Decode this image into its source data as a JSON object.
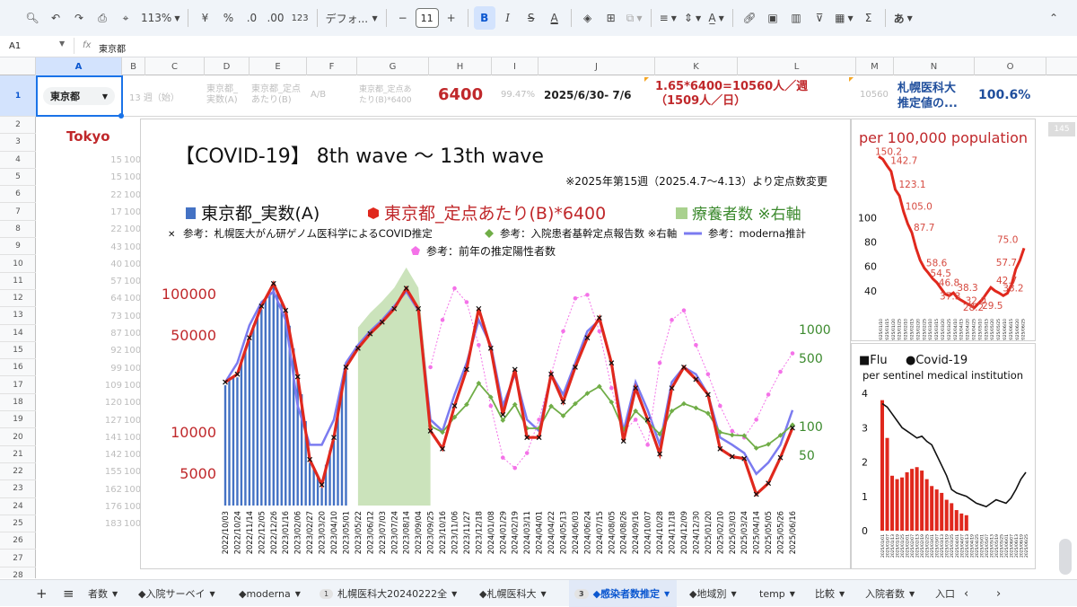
{
  "toolbar": {
    "zoom": "113%",
    "currency": "¥",
    "percent": "%",
    "dec_decrease": ".0",
    "dec_increase": ".00",
    "number_format": "123",
    "font": "デフォ...",
    "font_size": "11",
    "bold": "B",
    "italic": "I",
    "strike": "S",
    "textcolor": "A",
    "sigma": "Σ",
    "input_mode": "あ"
  },
  "formula_bar": {
    "cell_ref": "A1",
    "fx": "fx",
    "content": "東京都"
  },
  "columns": [
    "A",
    "B",
    "C",
    "D",
    "E",
    "F",
    "G",
    "H",
    "I",
    "J",
    "K",
    "L",
    "M",
    "N",
    "O"
  ],
  "rows": [
    "1",
    "2",
    "3",
    "4",
    "5",
    "6",
    "7",
    "8",
    "9",
    "10",
    "11",
    "12",
    "13",
    "14",
    "15",
    "16",
    "17",
    "18",
    "19",
    "20",
    "21",
    "22",
    "23",
    "24",
    "25",
    "26",
    "27",
    "28"
  ],
  "row1": {
    "a1": "東京都",
    "c1": "13 週（始）",
    "d1_line1": "東京都_",
    "d1_line2": "実数(A)",
    "e1_line1": "東京都_定点",
    "e1_line2": "あたり(B)",
    "f1": "A/B",
    "g1_line1": "東京都_定点あ",
    "g1_line2": "たり(B)*6400",
    "h1": "6400",
    "i1": "99.47%",
    "j1": "2025/6/30- 7/6",
    "k1_line1": "1.65*6400=10560人／週",
    "k1_line2": "（1509人／日）",
    "m1": "10560",
    "n1_line1": "札幌医科大",
    "n1_line2": "推定値の...",
    "o1": "100.6%"
  },
  "a2": "Tokyo",
  "row_right": "145",
  "ghost_col_b": [
    "15",
    "15",
    "22",
    "17",
    "22",
    "43",
    "40",
    "57",
    "64",
    "73",
    "87",
    "92",
    "99",
    "109",
    "120",
    "127",
    "141",
    "142",
    "155",
    "162",
    "176",
    "183"
  ],
  "ghost_col_c": [
    "100",
    "100",
    "100",
    "100",
    "100",
    "100",
    "100",
    "100",
    "100",
    "100",
    "100",
    "100",
    "100",
    "100",
    "100",
    "100",
    "100",
    "100",
    "100",
    "100",
    "100",
    "100"
  ],
  "main_chart": {
    "title": "【COVID-19】 8th wave 〜 13th wave",
    "note": "※2025年第15週（2025.4.7〜4.13）より定点数変更",
    "legend1": [
      "東京都_実数(A)",
      "東京都_定点あたり(B)*6400",
      "療養者数 ※右軸"
    ],
    "legend2": [
      "参考：札幌医大がん研ゲノム医科学によるCOVID推定",
      "参考：入院患者基幹定点報告数 ※右軸",
      "参考：moderna推計"
    ],
    "legend3": "参考：前年の推定陽性者数",
    "y_left_ticks": [
      "100000",
      "50000",
      "10000",
      "5000"
    ],
    "y_right_ticks": [
      "1000",
      "500",
      "100",
      "50"
    ],
    "x_labels": [
      "2022/10/03",
      "2022/10/24",
      "2022/11/14",
      "2022/12/05",
      "2022/12/26",
      "2023/01/16",
      "2023/02/06",
      "2023/02/27",
      "2023/03/20",
      "2023/04/10",
      "2023/05/01",
      "2023/05/22",
      "2023/06/12",
      "2023/07/03",
      "2023/07/24",
      "2023/08/14",
      "2023/09/04",
      "2023/09/25",
      "2023/10/16",
      "2023/11/06",
      "2023/11/27",
      "2023/12/18",
      "2024/01/08",
      "2024/01/29",
      "2024/02/19",
      "2024/03/11",
      "2024/04/01",
      "2024/04/22",
      "2024/05/13",
      "2024/06/03",
      "2024/06/24",
      "2024/07/15",
      "2024/08/05",
      "2024/08/26",
      "2024/09/16",
      "2024/10/07",
      "2024/10/28",
      "2024/11/18",
      "2024/12/09",
      "2024/12/30",
      "2025/01/20",
      "2025/02/10",
      "2025/03/03",
      "2025/03/24",
      "2025/04/14",
      "2025/05/05",
      "2025/05/26",
      "2025/06/16"
    ],
    "colors": {
      "actual": "#4472c4",
      "sentinel": "#e0281d",
      "recovering": "#a9d18e",
      "hosp": "#70ad47",
      "moderna": "#7b7bf0",
      "prev": "#f472e8"
    }
  },
  "chart_data": [
    {
      "type": "line",
      "title": "【COVID-19】 8th wave 〜 13th wave",
      "ylim": [
        3000,
        130000
      ],
      "series": [
        {
          "name": "東京都_定点あたり(B)*6400",
          "values": [
            22000,
            25000,
            45000,
            75000,
            108000,
            70000,
            24000,
            6300,
            4200,
            9000,
            28000,
            38000,
            48000,
            58000,
            72000,
            100000,
            72000,
            10000,
            7500,
            15000,
            27000,
            72000,
            38000,
            13000,
            27000,
            9000,
            9000,
            25000,
            16000,
            28000,
            45000,
            62000,
            30000,
            8500,
            20000,
            12000,
            6900,
            20000,
            28000,
            23000,
            18000,
            7500,
            6600,
            6400,
            3600,
            4300,
            6500,
            10500
          ]
        },
        {
          "name": "参考：前年の推定陽性者数",
          "values": [
            null,
            null,
            null,
            null,
            null,
            null,
            null,
            null,
            null,
            null,
            null,
            null,
            null,
            null,
            null,
            null,
            null,
            28000,
            60000,
            100000,
            80000,
            40000,
            15000,
            6500,
            5500,
            7000,
            12000,
            25000,
            50000,
            85000,
            90000,
            50000,
            20000,
            10000,
            12000,
            8000,
            30000,
            60000,
            70000,
            40000,
            25000,
            15000,
            10000,
            9000,
            12000,
            18000,
            26000,
            35000
          ]
        },
        {
          "name": "参考：moderna推計",
          "values": [
            22000,
            30000,
            55000,
            80000,
            95000,
            60000,
            15000,
            8000,
            8000,
            12000,
            30000,
            40000,
            50000,
            60000,
            75000,
            95000,
            70000,
            12000,
            10000,
            18000,
            30000,
            60000,
            40000,
            15000,
            25000,
            12000,
            10000,
            25000,
            18000,
            30000,
            50000,
            60000,
            30000,
            10000,
            22000,
            14000,
            8000,
            22000,
            28000,
            25000,
            18000,
            9000,
            8000,
            7000,
            5000,
            6000,
            8000,
            14000
          ]
        }
      ]
    },
    {
      "type": "line",
      "title": "per 100,000 population",
      "ylim": [
        20,
        160
      ],
      "labels": [
        "150.2",
        "142.7",
        "123.1",
        "105.0",
        "87.7",
        "58.6",
        "54.5",
        "46.8",
        "37.3",
        "38.3",
        "32.0",
        "28.2",
        "29.5",
        "42.7",
        "38.2",
        "57.7",
        "75.0"
      ]
    },
    {
      "type": "bar",
      "legend": [
        "Flu",
        "Covid-19"
      ],
      "subtitle": "per sentinel medical institution",
      "ylim": [
        0,
        4
      ],
      "y_ticks": [
        "4",
        "3",
        "2",
        "1",
        "0"
      ],
      "series": [
        {
          "name": "Flu",
          "values": [
            3.8,
            2.7,
            1.6,
            1.5,
            1.55,
            1.7,
            1.8,
            1.85,
            1.75,
            1.5,
            1.3,
            1.2,
            1.1,
            0.9,
            0.8,
            0.6,
            0.5,
            0.45
          ]
        },
        {
          "name": "Covid-19",
          "values": [
            3.7,
            3.6,
            3.4,
            3.2,
            3.0,
            2.9,
            2.8,
            2.7,
            2.75,
            2.6,
            2.5,
            2.2,
            1.9,
            1.6,
            1.2,
            1.1,
            1.05,
            1.0,
            0.9,
            0.8,
            0.75,
            0.7,
            0.8,
            0.9,
            0.85,
            0.8,
            0.95,
            1.2,
            1.5,
            1.7
          ]
        }
      ]
    }
  ],
  "tabs": [
    {
      "label": "者数",
      "badge": ""
    },
    {
      "label": "◆入院サーベイ",
      "badge": ""
    },
    {
      "label": "◆moderna",
      "badge": ""
    },
    {
      "label": "札幌医科大20240222全",
      "badge": "1"
    },
    {
      "label": "◆札幌医科大",
      "badge": ""
    },
    {
      "label": "◆感染者数推定",
      "badge": "3"
    },
    {
      "label": "◆地域別",
      "badge": ""
    },
    {
      "label": "temp",
      "badge": ""
    },
    {
      "label": "比較",
      "badge": ""
    },
    {
      "label": "入院者数",
      "badge": ""
    },
    {
      "label": "入口",
      "badge": ""
    }
  ]
}
